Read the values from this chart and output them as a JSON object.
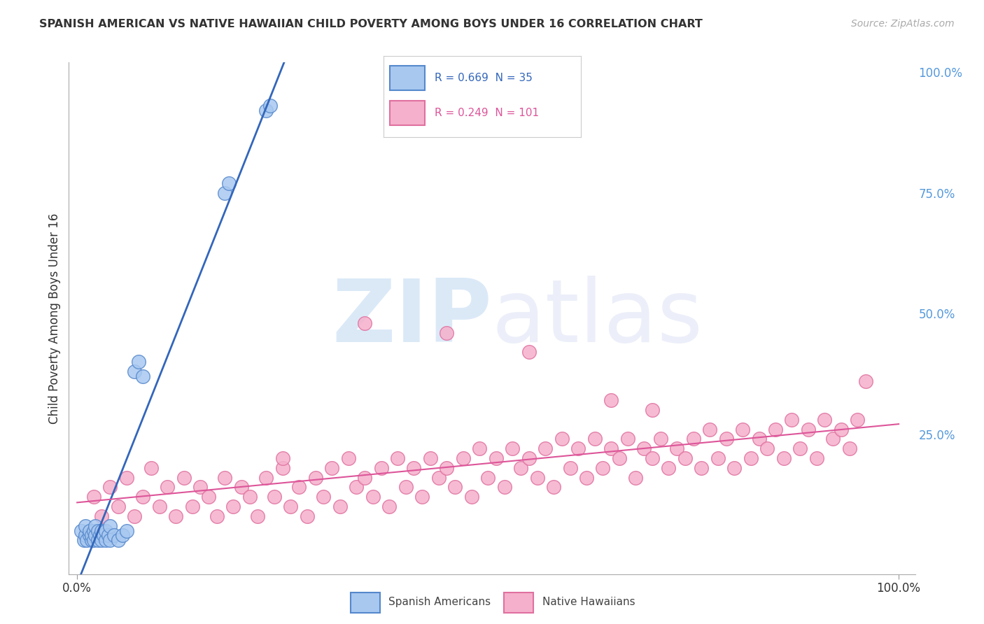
{
  "title": "SPANISH AMERICAN VS NATIVE HAWAIIAN CHILD POVERTY AMONG BOYS UNDER 16 CORRELATION CHART",
  "source": "Source: ZipAtlas.com",
  "ylabel": "Child Poverty Among Boys Under 16",
  "watermark": "ZIPatlas",
  "blue_R": 0.669,
  "blue_N": 35,
  "pink_R": 0.249,
  "pink_N": 101,
  "blue_color": "#A8C8F0",
  "pink_color": "#F5B0CB",
  "blue_edge_color": "#5588CC",
  "pink_edge_color": "#E070A0",
  "blue_line_color": "#3366BB",
  "pink_line_color": "#DD5599",
  "background": "#FFFFFF",
  "grid_color": "#DDDDDD",
  "right_tick_color": "#5599DD",
  "blue_x": [
    0.005,
    0.008,
    0.01,
    0.01,
    0.012,
    0.015,
    0.015,
    0.018,
    0.018,
    0.02,
    0.02,
    0.022,
    0.022,
    0.025,
    0.025,
    0.028,
    0.03,
    0.03,
    0.032,
    0.035,
    0.035,
    0.038,
    0.04,
    0.04,
    0.045,
    0.05,
    0.055,
    0.06,
    0.07,
    0.075,
    0.08,
    0.18,
    0.185,
    0.23,
    0.235
  ],
  "blue_y": [
    0.05,
    0.03,
    0.04,
    0.06,
    0.03,
    0.04,
    0.05,
    0.03,
    0.04,
    0.03,
    0.05,
    0.04,
    0.06,
    0.03,
    0.05,
    0.04,
    0.03,
    0.05,
    0.04,
    0.03,
    0.05,
    0.04,
    0.03,
    0.06,
    0.04,
    0.03,
    0.04,
    0.05,
    0.38,
    0.4,
    0.37,
    0.75,
    0.77,
    0.92,
    0.93
  ],
  "pink_x": [
    0.02,
    0.03,
    0.04,
    0.05,
    0.06,
    0.07,
    0.08,
    0.09,
    0.1,
    0.11,
    0.12,
    0.13,
    0.14,
    0.15,
    0.16,
    0.17,
    0.18,
    0.19,
    0.2,
    0.21,
    0.22,
    0.23,
    0.24,
    0.25,
    0.26,
    0.27,
    0.28,
    0.29,
    0.3,
    0.31,
    0.32,
    0.33,
    0.34,
    0.35,
    0.36,
    0.37,
    0.38,
    0.39,
    0.4,
    0.41,
    0.42,
    0.43,
    0.44,
    0.45,
    0.46,
    0.47,
    0.48,
    0.49,
    0.5,
    0.51,
    0.52,
    0.53,
    0.54,
    0.55,
    0.56,
    0.57,
    0.58,
    0.59,
    0.6,
    0.61,
    0.62,
    0.63,
    0.64,
    0.65,
    0.66,
    0.67,
    0.68,
    0.69,
    0.7,
    0.71,
    0.72,
    0.73,
    0.74,
    0.75,
    0.76,
    0.77,
    0.78,
    0.79,
    0.8,
    0.81,
    0.82,
    0.83,
    0.84,
    0.85,
    0.86,
    0.87,
    0.88,
    0.89,
    0.9,
    0.91,
    0.92,
    0.93,
    0.94,
    0.95,
    0.7,
    0.65,
    0.55,
    0.45,
    0.35,
    0.25,
    0.96
  ],
  "pink_y": [
    0.12,
    0.08,
    0.14,
    0.1,
    0.16,
    0.08,
    0.12,
    0.18,
    0.1,
    0.14,
    0.08,
    0.16,
    0.1,
    0.14,
    0.12,
    0.08,
    0.16,
    0.1,
    0.14,
    0.12,
    0.08,
    0.16,
    0.12,
    0.18,
    0.1,
    0.14,
    0.08,
    0.16,
    0.12,
    0.18,
    0.1,
    0.2,
    0.14,
    0.16,
    0.12,
    0.18,
    0.1,
    0.2,
    0.14,
    0.18,
    0.12,
    0.2,
    0.16,
    0.18,
    0.14,
    0.2,
    0.12,
    0.22,
    0.16,
    0.2,
    0.14,
    0.22,
    0.18,
    0.2,
    0.16,
    0.22,
    0.14,
    0.24,
    0.18,
    0.22,
    0.16,
    0.24,
    0.18,
    0.22,
    0.2,
    0.24,
    0.16,
    0.22,
    0.2,
    0.24,
    0.18,
    0.22,
    0.2,
    0.24,
    0.18,
    0.26,
    0.2,
    0.24,
    0.18,
    0.26,
    0.2,
    0.24,
    0.22,
    0.26,
    0.2,
    0.28,
    0.22,
    0.26,
    0.2,
    0.28,
    0.24,
    0.26,
    0.22,
    0.28,
    0.3,
    0.32,
    0.42,
    0.46,
    0.48,
    0.2,
    0.36
  ]
}
